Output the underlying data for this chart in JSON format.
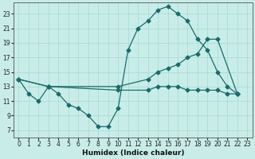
{
  "xlabel": "Humidex (Indice chaleur)",
  "bg_color": "#c8ede8",
  "line_color": "#1a6b6b",
  "grid_color": "#a8d8d0",
  "xlim": [
    -0.5,
    23.5
  ],
  "ylim": [
    6.0,
    24.5
  ],
  "xticks": [
    0,
    1,
    2,
    3,
    4,
    5,
    6,
    7,
    8,
    9,
    10,
    11,
    12,
    13,
    14,
    15,
    16,
    17,
    18,
    19,
    20,
    21,
    22,
    23
  ],
  "yticks": [
    7,
    9,
    11,
    13,
    15,
    17,
    19,
    21,
    23
  ],
  "series1_x": [
    0,
    1,
    2,
    3,
    4,
    5,
    6,
    7,
    8,
    9,
    10,
    11,
    12,
    13,
    14,
    15,
    16,
    17,
    18,
    19,
    20,
    21,
    22
  ],
  "series1_y": [
    14,
    12,
    11,
    13,
    12,
    10.5,
    10,
    9,
    7.5,
    7.5,
    10,
    18,
    21,
    22,
    23.5,
    24,
    23,
    22,
    19.5,
    18,
    15,
    13,
    12
  ],
  "series2_x": [
    0,
    3,
    10,
    13,
    14,
    15,
    16,
    17,
    18,
    19,
    20,
    22
  ],
  "series2_y": [
    14,
    13,
    13,
    14,
    15,
    15.5,
    16,
    17,
    17.5,
    19.5,
    19.5,
    12
  ],
  "series3_x": [
    0,
    3,
    10,
    13,
    14,
    15,
    16,
    17,
    18,
    19,
    20,
    21,
    22
  ],
  "series3_y": [
    14,
    13,
    12.5,
    12.5,
    13,
    13,
    13,
    12.5,
    12.5,
    12.5,
    12.5,
    12,
    12
  ]
}
